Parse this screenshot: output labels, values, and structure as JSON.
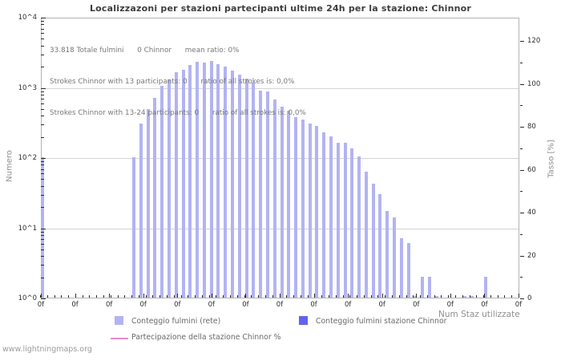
{
  "title": "Localizzazoni per stazioni partecipanti ultime 24h per la stazione: Chinnor",
  "watermark": "www.lightningmaps.org",
  "annotation": {
    "line1": "33.818 Totale fulmini      0 Chinnor      mean ratio: 0%",
    "line2": "Strokes Chinnor with 13 participants: 0      ratio of all strokes is: 0,0%",
    "line3": "Strokes Chinnor with 13-24 participants: 0      ratio of all strokes is: 0,0%"
  },
  "axes": {
    "left": {
      "label": "Numero",
      "ticks": [
        "10^4",
        "10^3",
        "10^2",
        "10^1",
        "10^0"
      ]
    },
    "right": {
      "label": "Tasso [%]",
      "ticks": [
        "120",
        "100",
        "80",
        "60",
        "40",
        "20",
        "0"
      ]
    },
    "x": {
      "label": "Num Staz utilizzate",
      "tick_label": "0f",
      "major_tick_count": 15
    }
  },
  "legend": {
    "item1": {
      "label": "Conteggio fulmini (rete)",
      "color": "#b3b3f3"
    },
    "item2": {
      "label": "Conteggio fulmini stazione Chinnor",
      "color": "#6262ef"
    },
    "item3": {
      "label": "Partecipazione della stazione Chinnor %",
      "color": "#ea8ccd"
    }
  },
  "colors": {
    "bar_network": "#b3b3f3",
    "bar_station": "#6262ef",
    "participation_line": "#ea8ccd",
    "gridline": "#d4d4d4",
    "plot_border": "#b3b3b3",
    "tick": "#2a2a2a",
    "text_muted": "#787878"
  },
  "chart_data": {
    "type": "bar",
    "title": "Localizzazoni per stazioni partecipanti ultime 24h per la stazione: Chinnor",
    "xlabel": "Num Staz utilizzate",
    "ylabel_left": "Numero",
    "ylabel_right": "Tasso [%]",
    "y_scale": "log",
    "ylim_left": [
      1,
      10000
    ],
    "ylim_right": [
      0,
      130
    ],
    "grid": true,
    "legend_position": "bottom",
    "total_strokes": "33.818",
    "station_strokes": 0,
    "mean_ratio_pct": 0,
    "num_slots": 68,
    "series": [
      {
        "name": "Conteggio fulmini (rete)",
        "values": [
          100,
          0,
          0,
          0,
          0,
          0,
          0,
          0,
          0,
          0,
          0,
          0,
          0,
          100,
          305,
          480,
          695,
          1040,
          1280,
          1625,
          1780,
          2060,
          2270,
          2250,
          2330,
          2120,
          1940,
          1700,
          1490,
          1305,
          1145,
          880,
          855,
          660,
          530,
          455,
          375,
          345,
          300,
          280,
          225,
          197,
          161,
          161,
          135,
          102,
          63,
          42,
          30,
          17,
          14,
          7,
          6,
          1,
          2,
          2,
          1,
          0,
          0,
          0,
          1,
          1,
          0,
          2,
          0,
          0,
          0,
          0
        ]
      },
      {
        "name": "Conteggio fulmini stazione Chinnor",
        "values": []
      },
      {
        "name": "Partecipazione della stazione Chinnor %",
        "values": []
      }
    ]
  }
}
